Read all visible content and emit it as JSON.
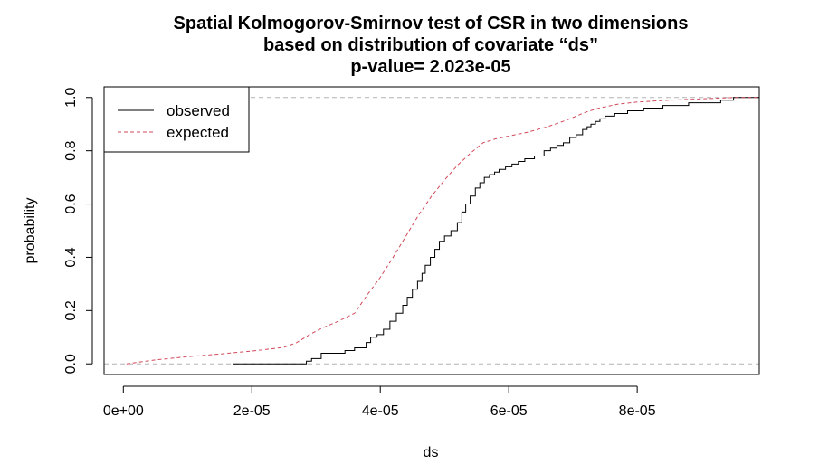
{
  "chart_data": {
    "type": "line",
    "title_lines": [
      "Spatial Kolmogorov-Smirnov test of CSR in two dimensions",
      "based on distribution of covariate “ds”",
      "p-value= 2.023e-05"
    ],
    "xlabel": "ds",
    "ylabel": "probability",
    "xlim": [
      -3e-06,
      9.9e-05
    ],
    "ylim": [
      -0.04,
      1.04
    ],
    "x_ticks": [
      0,
      2e-05,
      4e-05,
      6e-05,
      8e-05
    ],
    "x_tick_labels": [
      "0e+00",
      "2e-05",
      "4e-05",
      "6e-05",
      "8e-05"
    ],
    "y_ticks": [
      0,
      0.2,
      0.4,
      0.6,
      0.8,
      1
    ],
    "y_tick_labels": [
      "0.0",
      "0.2",
      "0.4",
      "0.6",
      "0.8",
      "1.0"
    ],
    "reference_lines_y": [
      0,
      1
    ],
    "legend_position": "top-left",
    "series": [
      {
        "name": "observed",
        "color": "#000000",
        "style": "solid",
        "step": true,
        "x": [
          1.7e-05,
          2.85e-05,
          2.93e-05,
          3.08e-05,
          3.45e-05,
          3.6e-05,
          3.78e-05,
          3.85e-05,
          3.95e-05,
          4.05e-05,
          4.15e-05,
          4.25e-05,
          4.35e-05,
          4.42e-05,
          4.5e-05,
          4.58e-05,
          4.65e-05,
          4.7e-05,
          4.78e-05,
          4.85e-05,
          4.92e-05,
          5e-05,
          5.1e-05,
          5.2e-05,
          5.27e-05,
          5.33e-05,
          5.4e-05,
          5.48e-05,
          5.55e-05,
          5.62e-05,
          5.7e-05,
          5.78e-05,
          5.85e-05,
          5.95e-05,
          6.05e-05,
          6.15e-05,
          6.25e-05,
          6.4e-05,
          6.55e-05,
          6.65e-05,
          6.75e-05,
          6.85e-05,
          6.95e-05,
          7.05e-05,
          7.15e-05,
          7.22e-05,
          7.28e-05,
          7.35e-05,
          7.42e-05,
          7.5e-05,
          7.65e-05,
          7.85e-05,
          8.1e-05,
          8.4e-05,
          8.8e-05,
          9.3e-05,
          9.5e-05
        ],
        "values": [
          0,
          0.01,
          0.02,
          0.04,
          0.05,
          0.06,
          0.08,
          0.1,
          0.11,
          0.13,
          0.16,
          0.19,
          0.22,
          0.25,
          0.28,
          0.31,
          0.34,
          0.37,
          0.4,
          0.43,
          0.46,
          0.48,
          0.5,
          0.53,
          0.57,
          0.6,
          0.63,
          0.66,
          0.68,
          0.7,
          0.71,
          0.72,
          0.73,
          0.74,
          0.75,
          0.76,
          0.77,
          0.78,
          0.8,
          0.81,
          0.82,
          0.83,
          0.85,
          0.86,
          0.88,
          0.89,
          0.9,
          0.91,
          0.92,
          0.93,
          0.94,
          0.95,
          0.96,
          0.97,
          0.98,
          0.99,
          1.0
        ]
      },
      {
        "name": "expected",
        "color": "#d1495b",
        "style": "dashed",
        "step": false,
        "x": [
          5e-07,
          2e-06,
          5e-06,
          1e-05,
          1.5e-05,
          2e-05,
          2.5e-05,
          2.7e-05,
          2.9e-05,
          3.1e-05,
          3.3e-05,
          3.6e-05,
          3.8e-05,
          4e-05,
          4.2e-05,
          4.4e-05,
          4.6e-05,
          4.8e-05,
          5e-05,
          5.2e-05,
          5.4e-05,
          5.6e-05,
          5.8e-05,
          6e-05,
          6.3e-05,
          6.6e-05,
          6.9e-05,
          7.2e-05,
          7.4e-05,
          7.7e-05,
          8e-05,
          8.5e-05,
          9e-05,
          9.5e-05
        ],
        "values": [
          0,
          0.005,
          0.015,
          0.027,
          0.037,
          0.048,
          0.062,
          0.08,
          0.11,
          0.135,
          0.155,
          0.19,
          0.26,
          0.325,
          0.4,
          0.48,
          0.56,
          0.63,
          0.69,
          0.745,
          0.79,
          0.83,
          0.845,
          0.855,
          0.87,
          0.89,
          0.915,
          0.945,
          0.96,
          0.975,
          0.983,
          0.99,
          0.995,
          1.0
        ]
      }
    ]
  }
}
